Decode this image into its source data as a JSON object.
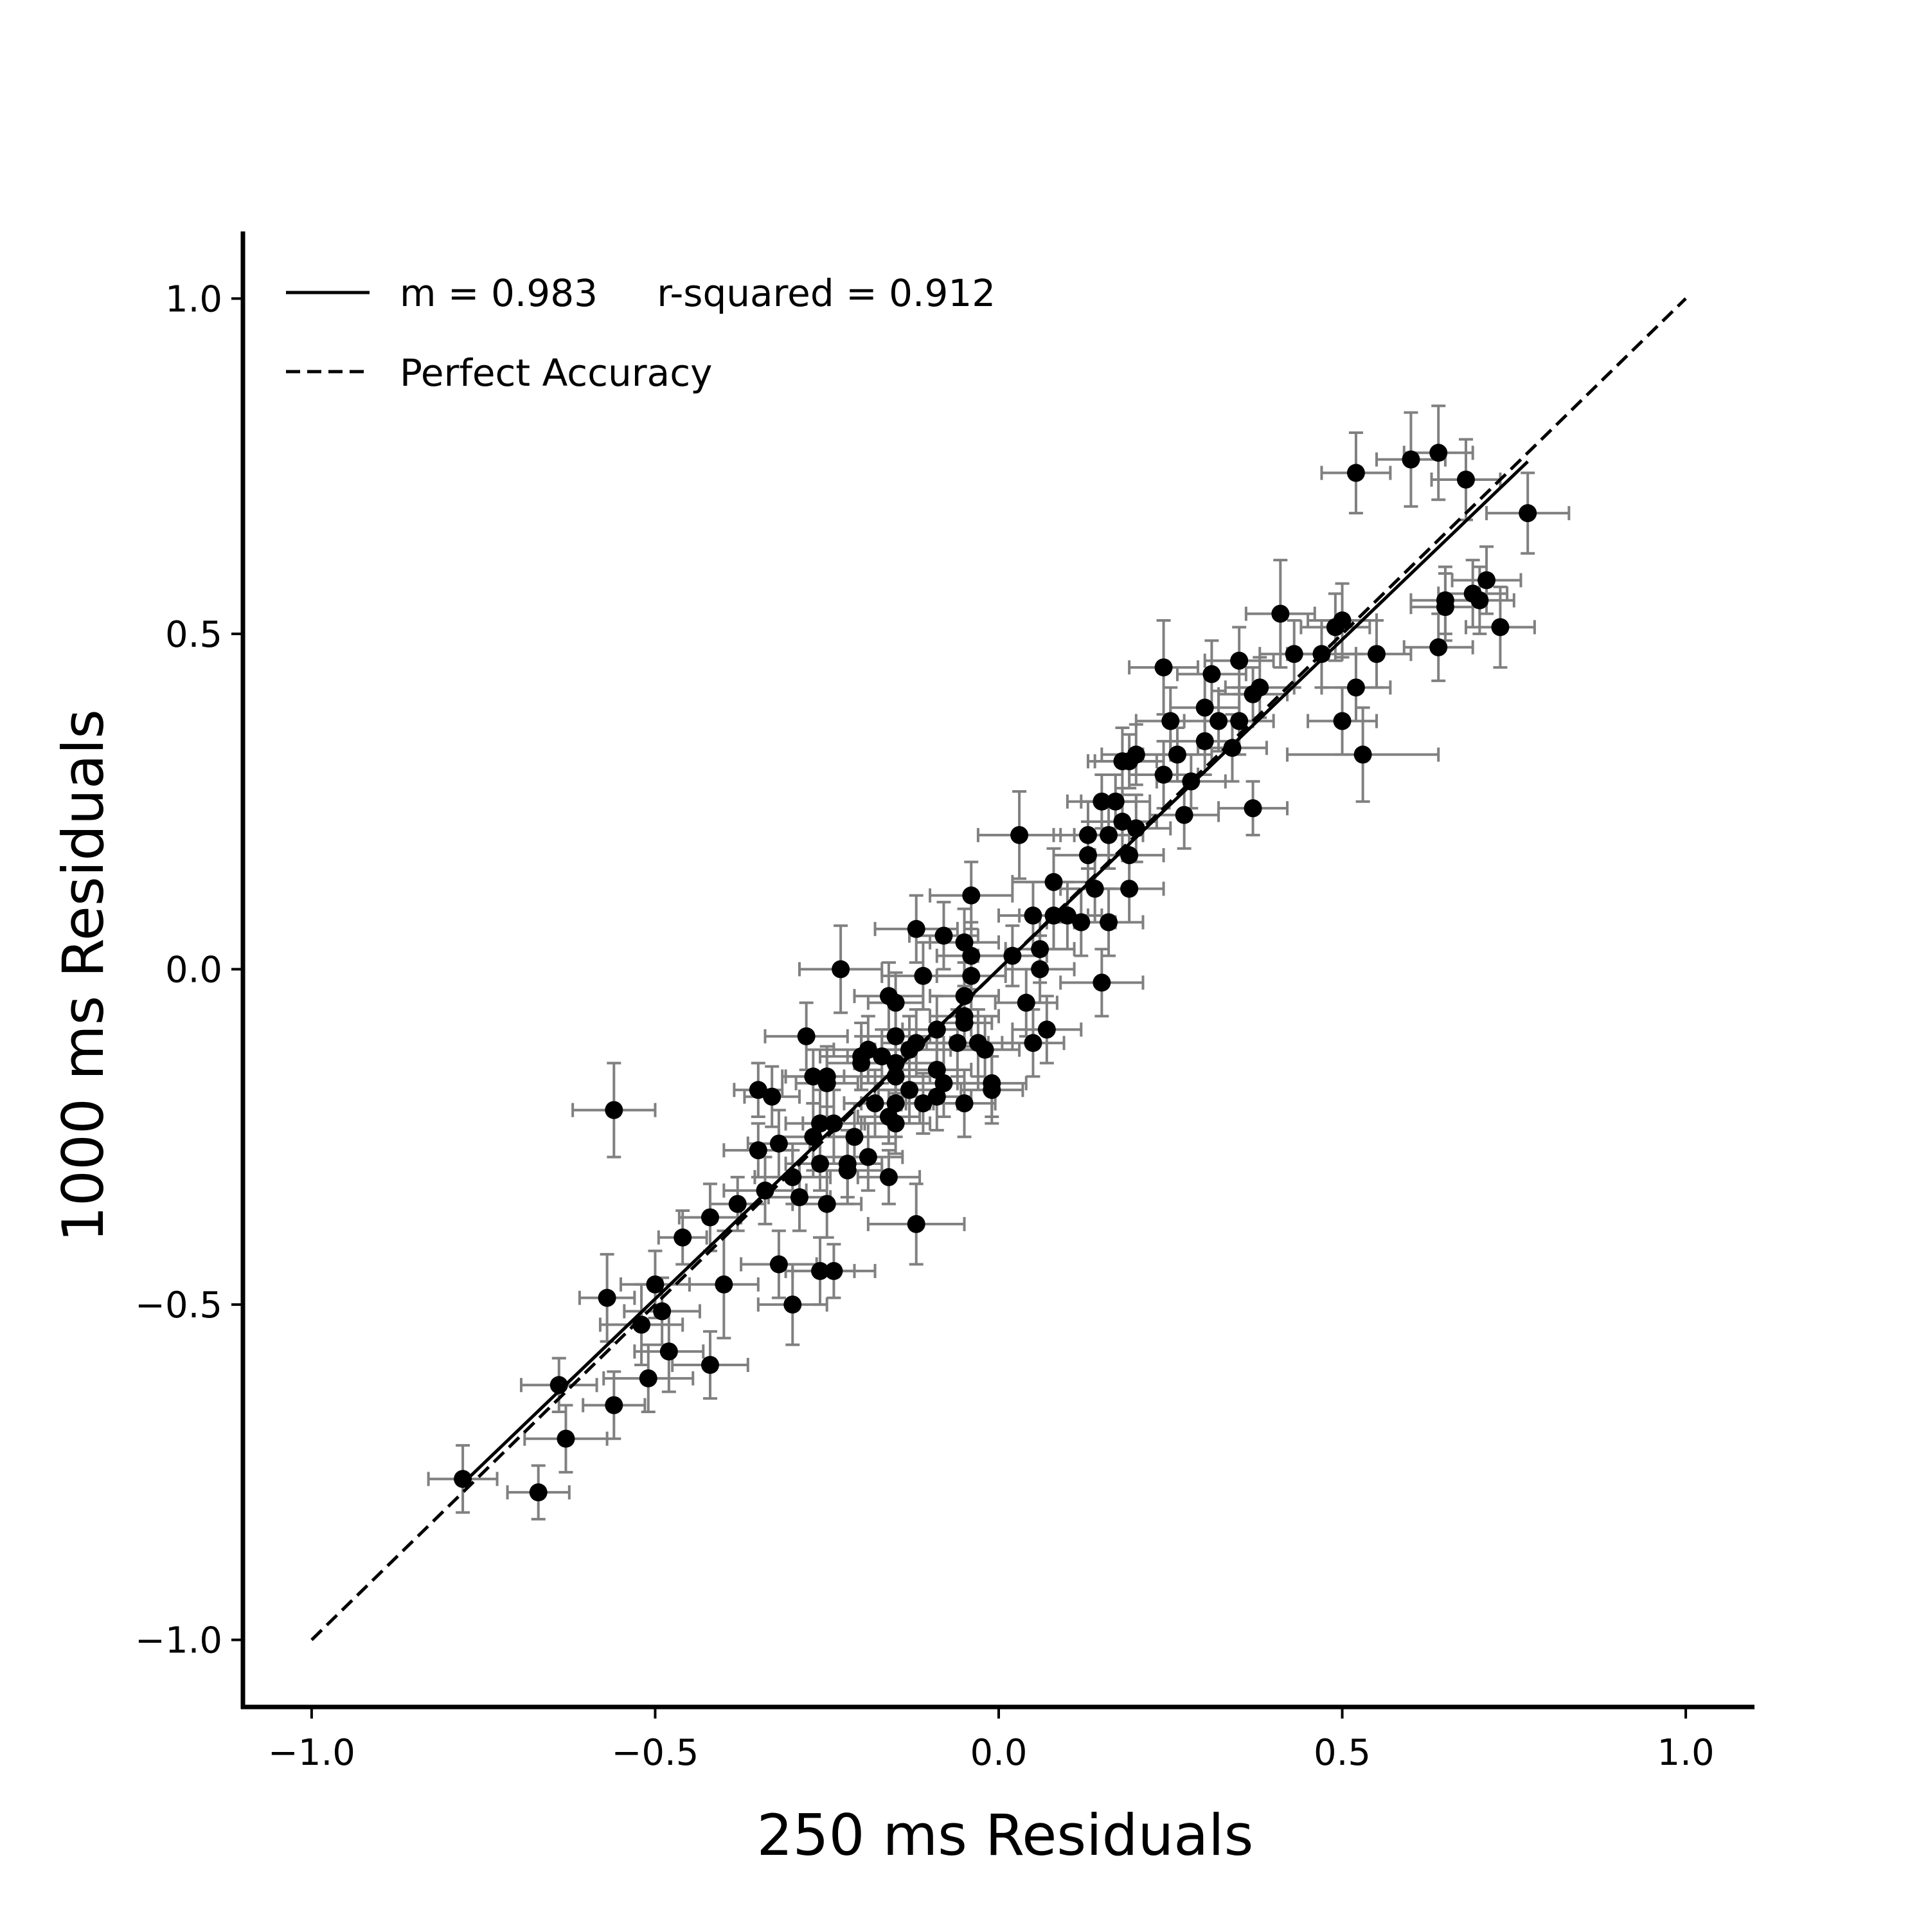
{
  "chart_data": {
    "type": "scatter",
    "title": "",
    "xlabel": "250 ms Residuals",
    "ylabel": "1000 ms Residuals",
    "xlim": [
      -1.1,
      1.1
    ],
    "ylim": [
      -1.1,
      1.1
    ],
    "xticks": [
      -1.0,
      -0.5,
      0.0,
      0.5,
      1.0
    ],
    "yticks": [
      -1.0,
      -0.5,
      0.0,
      0.5,
      1.0
    ],
    "xtick_labels": [
      "−1.0",
      "−0.5",
      "0.0",
      "0.5",
      "1.0"
    ],
    "ytick_labels": [
      "−1.0",
      "−0.5",
      "0.0",
      "0.5",
      "1.0"
    ],
    "grid": false,
    "legend": {
      "placement": "top-left",
      "entries": [
        {
          "label": "m = 0.983     r-squared = 0.912",
          "style": "solid"
        },
        {
          "label": "Perfect Accuracy",
          "style": "dashed"
        }
      ]
    },
    "fit_line": {
      "slope": 0.983,
      "r_squared": 0.912,
      "x_range": [
        -0.78,
        0.77
      ]
    },
    "identity_line": {
      "from": [
        -1.0,
        -1.0
      ],
      "to": [
        1.0,
        1.0
      ]
    },
    "colors": {
      "points": "#000000",
      "error_bars": "#808080",
      "lines": "#000000"
    },
    "points": [
      [
        -0.78,
        -0.76,
        0.05,
        0.05
      ],
      [
        -0.67,
        -0.78,
        0.045,
        0.04
      ],
      [
        -0.64,
        -0.62,
        0.055,
        0.04
      ],
      [
        -0.63,
        -0.7,
        0.06,
        0.05
      ],
      [
        -0.56,
        -0.65,
        0.045,
        0.05
      ],
      [
        -0.57,
        -0.49,
        0.04,
        0.065
      ],
      [
        -0.52,
        -0.53,
        0.06,
        0.06
      ],
      [
        -0.51,
        -0.61,
        0.065,
        0.05
      ],
      [
        -0.5,
        -0.47,
        0.05,
        0.05
      ],
      [
        -0.48,
        -0.57,
        0.05,
        0.06
      ],
      [
        -0.49,
        -0.51,
        0.055,
        0.05
      ],
      [
        -0.46,
        -0.4,
        0.035,
        0.04
      ],
      [
        -0.42,
        -0.37,
        0.045,
        0.05
      ],
      [
        -0.42,
        -0.59,
        0.055,
        0.05
      ],
      [
        -0.4,
        -0.47,
        0.05,
        0.08
      ],
      [
        -0.38,
        -0.35,
        0.04,
        0.04
      ],
      [
        -0.56,
        -0.21,
        0.06,
        0.07
      ],
      [
        -0.35,
        -0.18,
        0.035,
        0.04
      ],
      [
        -0.35,
        -0.27,
        0.05,
        0.04
      ],
      [
        -0.34,
        -0.33,
        0.06,
        0.05
      ],
      [
        -0.33,
        -0.19,
        0.04,
        0.045
      ],
      [
        -0.32,
        -0.26,
        0.045,
        0.05
      ],
      [
        -0.32,
        -0.44,
        0.055,
        0.05
      ],
      [
        -0.3,
        -0.31,
        0.055,
        0.04
      ],
      [
        -0.3,
        -0.5,
        0.05,
        0.06
      ],
      [
        -0.29,
        -0.34,
        0.045,
        0.05
      ],
      [
        -0.28,
        -0.1,
        0.06,
        0.05
      ],
      [
        -0.27,
        -0.16,
        0.045,
        0.04
      ],
      [
        -0.27,
        -0.25,
        0.05,
        0.05
      ],
      [
        -0.26,
        -0.23,
        0.05,
        0.05
      ],
      [
        -0.26,
        -0.29,
        0.05,
        0.04
      ],
      [
        -0.26,
        -0.45,
        0.05,
        0.05
      ],
      [
        -0.25,
        -0.16,
        0.06,
        0.045
      ],
      [
        -0.25,
        -0.17,
        0.045,
        0.05
      ],
      [
        -0.25,
        -0.35,
        0.05,
        0.05
      ],
      [
        -0.24,
        -0.23,
        0.045,
        0.05
      ],
      [
        -0.24,
        -0.45,
        0.06,
        0.04
      ],
      [
        -0.23,
        0.0,
        0.06,
        0.065
      ],
      [
        -0.22,
        -0.29,
        0.05,
        0.05
      ],
      [
        -0.22,
        -0.3,
        0.05,
        0.05
      ],
      [
        -0.21,
        -0.25,
        0.05,
        0.05
      ],
      [
        -0.2,
        -0.14,
        0.05,
        0.04
      ],
      [
        -0.2,
        -0.13,
        0.06,
        0.05
      ],
      [
        -0.19,
        -0.12,
        0.05,
        0.05
      ],
      [
        -0.19,
        -0.28,
        0.05,
        0.05
      ],
      [
        -0.18,
        -0.2,
        0.045,
        0.05
      ],
      [
        -0.17,
        -0.13,
        0.05,
        0.04
      ],
      [
        -0.16,
        -0.22,
        0.045,
        0.04
      ],
      [
        -0.16,
        -0.31,
        0.045,
        0.04
      ],
      [
        -0.16,
        -0.04,
        0.05,
        0.05
      ],
      [
        -0.15,
        -0.05,
        0.04,
        0.045
      ],
      [
        -0.15,
        -0.1,
        0.05,
        0.05
      ],
      [
        -0.15,
        -0.14,
        0.06,
        0.05
      ],
      [
        -0.15,
        -0.16,
        0.05,
        0.05
      ],
      [
        -0.15,
        -0.2,
        0.05,
        0.05
      ],
      [
        -0.15,
        -0.23,
        0.05,
        0.045
      ],
      [
        -0.13,
        -0.18,
        0.045,
        0.05
      ],
      [
        -0.13,
        -0.12,
        0.05,
        0.05
      ],
      [
        -0.12,
        -0.11,
        0.05,
        0.05
      ],
      [
        -0.12,
        0.06,
        0.06,
        0.05
      ],
      [
        -0.11,
        -0.01,
        0.06,
        0.05
      ],
      [
        -0.11,
        -0.2,
        0.05,
        0.045
      ],
      [
        -0.12,
        -0.38,
        0.07,
        0.06
      ],
      [
        -0.09,
        -0.09,
        0.05,
        0.05
      ],
      [
        -0.09,
        -0.15,
        0.05,
        0.05
      ],
      [
        -0.09,
        -0.19,
        0.05,
        0.05
      ],
      [
        -0.08,
        0.05,
        0.05,
        0.05
      ],
      [
        -0.08,
        -0.17,
        0.05,
        0.05
      ],
      [
        -0.06,
        -0.11,
        0.045,
        0.05
      ],
      [
        -0.05,
        0.04,
        0.05,
        0.05
      ],
      [
        -0.05,
        -0.04,
        0.05,
        0.05
      ],
      [
        -0.05,
        -0.07,
        0.05,
        0.045
      ],
      [
        -0.05,
        -0.08,
        0.04,
        0.04
      ],
      [
        -0.05,
        -0.2,
        0.045,
        0.05
      ],
      [
        -0.04,
        0.11,
        0.06,
        0.05
      ],
      [
        -0.04,
        0.02,
        0.05,
        0.05
      ],
      [
        -0.04,
        -0.01,
        0.05,
        0.05
      ],
      [
        -0.03,
        -0.11,
        0.05,
        0.05
      ],
      [
        -0.02,
        -0.12,
        0.05,
        0.05
      ],
      [
        -0.01,
        -0.17,
        0.05,
        0.05
      ],
      [
        -0.01,
        -0.18,
        0.045,
        0.05
      ],
      [
        0.02,
        0.02,
        0.05,
        0.045
      ],
      [
        0.03,
        0.2,
        0.06,
        0.065
      ],
      [
        0.04,
        -0.05,
        0.045,
        0.05
      ],
      [
        0.05,
        0.08,
        0.05,
        0.05
      ],
      [
        0.05,
        -0.11,
        0.045,
        0.05
      ],
      [
        0.06,
        0.03,
        0.05,
        0.05
      ],
      [
        0.06,
        0.0,
        0.05,
        0.05
      ],
      [
        0.07,
        -0.09,
        0.05,
        0.05
      ],
      [
        0.08,
        0.13,
        0.06,
        0.05
      ],
      [
        0.08,
        0.08,
        0.05,
        0.05
      ],
      [
        0.1,
        0.08,
        0.05,
        0.05
      ],
      [
        0.12,
        0.07,
        0.05,
        0.05
      ],
      [
        0.13,
        0.2,
        0.05,
        0.05
      ],
      [
        0.13,
        0.17,
        0.05,
        0.05
      ],
      [
        0.14,
        0.12,
        0.05,
        0.05
      ],
      [
        0.15,
        0.25,
        0.05,
        0.04
      ],
      [
        0.15,
        -0.02,
        0.06,
        0.05
      ],
      [
        0.16,
        0.2,
        0.05,
        0.05
      ],
      [
        0.16,
        0.07,
        0.05,
        0.05
      ],
      [
        0.17,
        0.25,
        0.05,
        0.04
      ],
      [
        0.18,
        0.22,
        0.05,
        0.05
      ],
      [
        0.18,
        0.31,
        0.05,
        0.05
      ],
      [
        0.19,
        0.31,
        0.05,
        0.04
      ],
      [
        0.19,
        0.17,
        0.05,
        0.05
      ],
      [
        0.19,
        0.12,
        0.05,
        0.05
      ],
      [
        0.2,
        0.32,
        0.05,
        0.045
      ],
      [
        0.2,
        0.21,
        0.05,
        0.05
      ],
      [
        0.24,
        0.45,
        0.05,
        0.07
      ],
      [
        0.24,
        0.29,
        0.05,
        0.05
      ],
      [
        0.25,
        0.37,
        0.05,
        0.05
      ],
      [
        0.26,
        0.32,
        0.05,
        0.04
      ],
      [
        0.27,
        0.23,
        0.05,
        0.05
      ],
      [
        0.28,
        0.28,
        0.05,
        0.04
      ],
      [
        0.3,
        0.39,
        0.05,
        0.05
      ],
      [
        0.3,
        0.34,
        0.05,
        0.05
      ],
      [
        0.31,
        0.44,
        0.05,
        0.05
      ],
      [
        0.32,
        0.37,
        0.05,
        0.045
      ],
      [
        0.34,
        0.33,
        0.05,
        0.05
      ],
      [
        0.35,
        0.37,
        0.05,
        0.05
      ],
      [
        0.35,
        0.46,
        0.05,
        0.05
      ],
      [
        0.37,
        0.41,
        0.05,
        0.04
      ],
      [
        0.38,
        0.42,
        0.05,
        0.045
      ],
      [
        0.37,
        0.24,
        0.05,
        0.04
      ],
      [
        0.41,
        0.53,
        0.05,
        0.08
      ],
      [
        0.43,
        0.47,
        0.05,
        0.05
      ],
      [
        0.47,
        0.47,
        0.05,
        0.05
      ],
      [
        0.49,
        0.51,
        0.05,
        0.05
      ],
      [
        0.5,
        0.52,
        0.05,
        0.055
      ],
      [
        0.5,
        0.37,
        0.05,
        0.05
      ],
      [
        0.52,
        0.42,
        0.05,
        0.05
      ],
      [
        0.53,
        0.32,
        0.11,
        0.07
      ],
      [
        0.55,
        0.47,
        0.05,
        0.05
      ],
      [
        0.52,
        0.74,
        0.05,
        0.06
      ],
      [
        0.6,
        0.76,
        0.05,
        0.07
      ],
      [
        0.64,
        0.77,
        0.05,
        0.07
      ],
      [
        0.64,
        0.48,
        0.05,
        0.05
      ],
      [
        0.65,
        0.54,
        0.05,
        0.05
      ],
      [
        0.65,
        0.55,
        0.05,
        0.05
      ],
      [
        0.68,
        0.73,
        0.05,
        0.06
      ],
      [
        0.69,
        0.56,
        0.05,
        0.05
      ],
      [
        0.7,
        0.55,
        0.05,
        0.05
      ],
      [
        0.71,
        0.58,
        0.05,
        0.05
      ],
      [
        0.73,
        0.51,
        0.05,
        0.06
      ],
      [
        0.77,
        0.68,
        0.06,
        0.06
      ]
    ]
  }
}
